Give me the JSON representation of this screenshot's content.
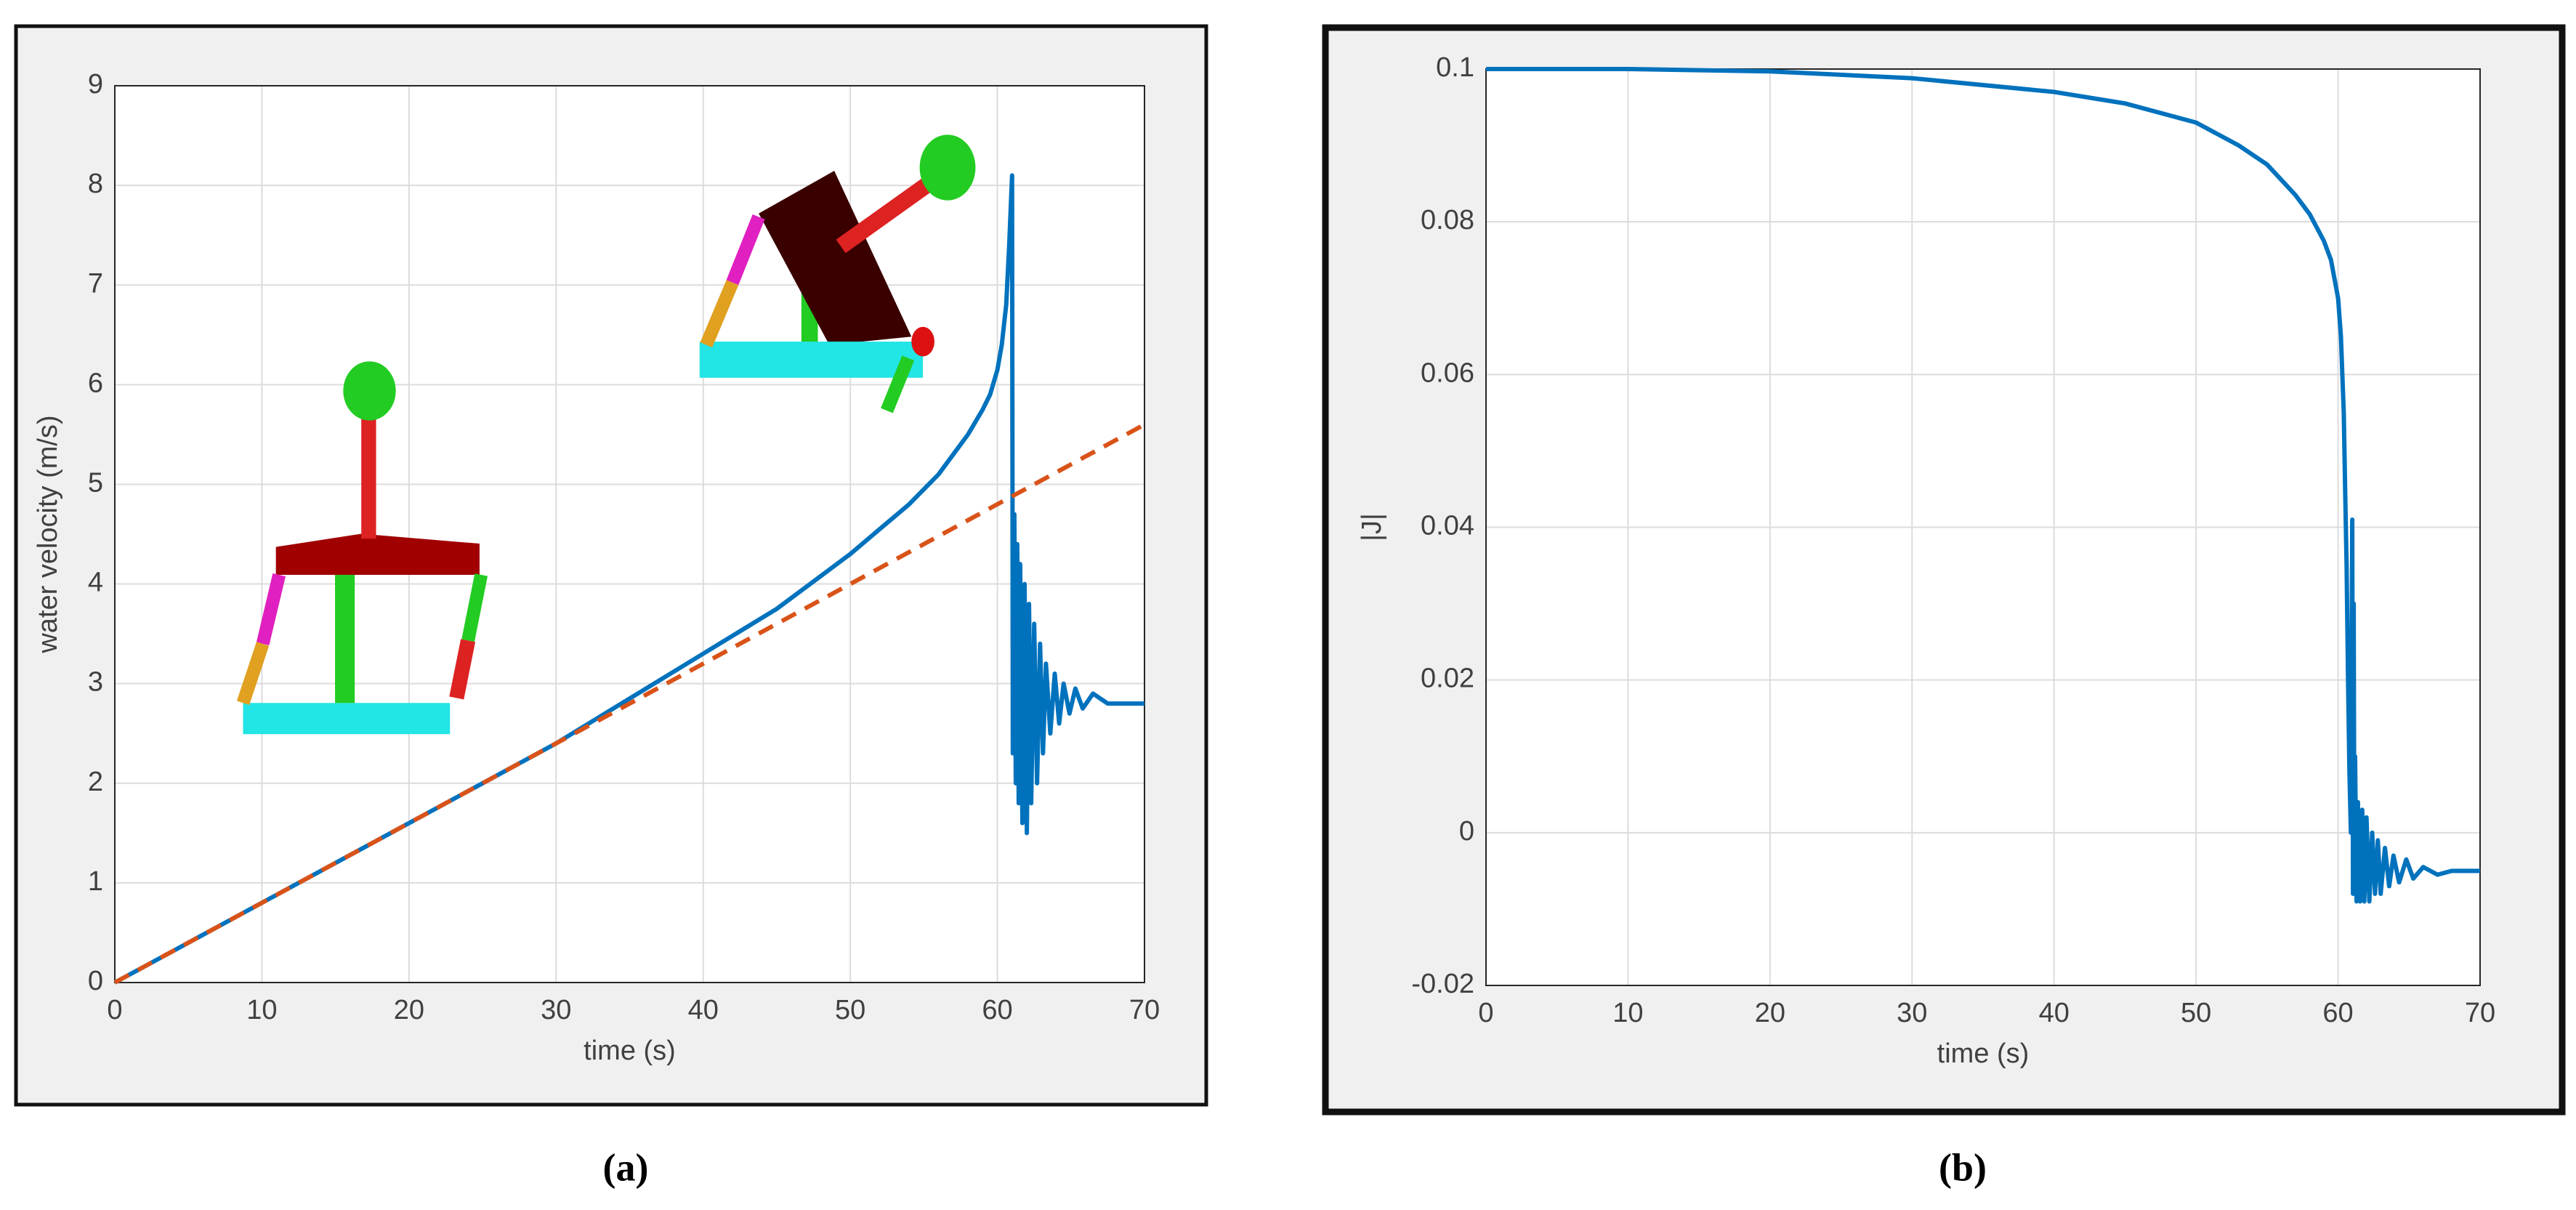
{
  "chart_data": [
    {
      "type": "line",
      "caption": "(a)",
      "x_label": "time (s)",
      "y_label": "water velocity (m/s)",
      "xlim": [
        0,
        70
      ],
      "ylim": [
        0,
        9
      ],
      "xticks": [
        0,
        10,
        20,
        30,
        40,
        50,
        60,
        70
      ],
      "yticks": [
        0,
        1,
        2,
        3,
        4,
        5,
        6,
        7,
        8,
        9
      ],
      "grid": true,
      "series": [
        {
          "color": "#0072bd",
          "style": "solid",
          "x": [
            0,
            5,
            10,
            15,
            20,
            25,
            30,
            35,
            40,
            45,
            50,
            52,
            54,
            56,
            57,
            58,
            59,
            59.5,
            60,
            60.3,
            60.6,
            60.8,
            61,
            61.05,
            61.15,
            61.25,
            61.35,
            61.45,
            61.55,
            61.7,
            61.85,
            62,
            62.15,
            62.3,
            62.5,
            62.7,
            62.9,
            63.1,
            63.3,
            63.6,
            63.9,
            64.2,
            64.5,
            64.9,
            65.3,
            65.8,
            66.5,
            67.5,
            70
          ],
          "values": [
            0,
            0.4,
            0.8,
            1.2,
            1.6,
            2.0,
            2.4,
            2.85,
            3.3,
            3.75,
            4.3,
            4.55,
            4.8,
            5.1,
            5.3,
            5.5,
            5.75,
            5.9,
            6.15,
            6.4,
            6.8,
            7.4,
            8.1,
            2.3,
            4.7,
            2.0,
            4.4,
            1.8,
            4.2,
            1.6,
            4.0,
            1.5,
            3.8,
            1.8,
            3.6,
            2.0,
            3.4,
            2.3,
            3.2,
            2.5,
            3.1,
            2.6,
            3.0,
            2.7,
            2.95,
            2.75,
            2.9,
            2.8,
            2.8
          ]
        },
        {
          "color": "#d95319",
          "style": "dashed",
          "x": [
            0,
            70
          ],
          "values": [
            0,
            5.6
          ]
        }
      ]
    },
    {
      "type": "line",
      "caption": "(b)",
      "x_label": "time (s)",
      "y_label": "|J|",
      "xlim": [
        0,
        70
      ],
      "ylim": [
        -0.02,
        0.1
      ],
      "xticks": [
        0,
        10,
        20,
        30,
        40,
        50,
        60,
        70
      ],
      "yticks": [
        -0.02,
        0,
        0.02,
        0.04,
        0.06,
        0.08,
        0.1
      ],
      "grid": true,
      "series": [
        {
          "color": "#0072bd",
          "style": "solid",
          "x": [
            0,
            10,
            20,
            30,
            40,
            45,
            50,
            53,
            55,
            57,
            58,
            59,
            59.5,
            60,
            60.2,
            60.4,
            60.5,
            60.6,
            60.7,
            60.8,
            60.9,
            61,
            61.05,
            61.1,
            61.15,
            61.2,
            61.3,
            61.4,
            61.55,
            61.7,
            61.85,
            62,
            62.2,
            62.4,
            62.6,
            62.8,
            63,
            63.3,
            63.6,
            63.9,
            64.3,
            64.8,
            65.3,
            66,
            67,
            68,
            70
          ],
          "values": [
            0.1,
            0.1,
            0.0997,
            0.0988,
            0.097,
            0.0955,
            0.093,
            0.09,
            0.0875,
            0.0835,
            0.081,
            0.0775,
            0.075,
            0.07,
            0.065,
            0.055,
            0.045,
            0.035,
            0.02,
            0.008,
            0,
            0.041,
            -0.008,
            0.03,
            -0.008,
            0.01,
            -0.009,
            0.004,
            -0.009,
            0.003,
            -0.009,
            0.002,
            -0.009,
            0,
            -0.008,
            -0.001,
            -0.008,
            -0.002,
            -0.007,
            -0.003,
            -0.0065,
            -0.0035,
            -0.006,
            -0.0045,
            -0.0055,
            -0.005,
            -0.005
          ]
        }
      ]
    }
  ]
}
